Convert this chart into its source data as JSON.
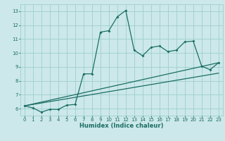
{
  "xlabel": "Humidex (Indice chaleur)",
  "bg_color": "#cce8ea",
  "grid_color": "#9ecece",
  "line_color": "#1a6e64",
  "xlim": [
    -0.5,
    23.5
  ],
  "ylim": [
    5.5,
    13.5
  ],
  "xticks": [
    0,
    1,
    2,
    3,
    4,
    5,
    6,
    7,
    8,
    9,
    10,
    11,
    12,
    13,
    14,
    15,
    16,
    17,
    18,
    19,
    20,
    21,
    22,
    23
  ],
  "yticks": [
    6,
    7,
    8,
    9,
    10,
    11,
    12,
    13
  ],
  "line1_x": [
    0,
    1,
    2,
    3,
    4,
    5,
    6,
    7,
    8,
    9,
    10,
    11,
    12,
    13,
    14,
    15,
    16,
    17,
    18,
    19,
    20,
    21,
    22,
    23
  ],
  "line1_y": [
    6.2,
    6.05,
    5.75,
    5.95,
    5.95,
    6.25,
    6.3,
    8.5,
    8.5,
    11.5,
    11.6,
    12.6,
    13.05,
    10.2,
    9.8,
    10.4,
    10.5,
    10.1,
    10.2,
    10.8,
    10.85,
    9.05,
    8.8,
    9.3
  ],
  "line2_x": [
    0,
    23
  ],
  "line2_y": [
    6.2,
    9.3
  ],
  "line3_x": [
    0,
    23
  ],
  "line3_y": [
    6.2,
    8.55
  ],
  "ylabel_fontsize": 5.5,
  "xlabel_fontsize": 6.0,
  "tick_fontsize": 5.0
}
